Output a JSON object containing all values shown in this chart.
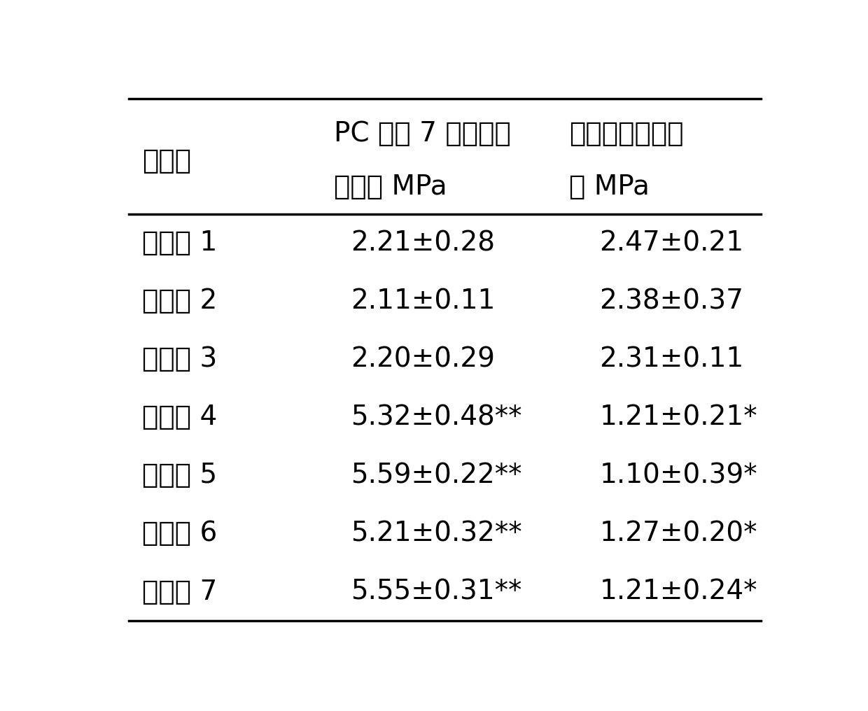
{
  "header_col0": "实验组",
  "header_col1_line1": "PC 浸泡 7 天后的粘",
  "header_col1_line2": "接强度 MPa",
  "header_col2_line1": "粘合强度的降低",
  "header_col2_line2": "値 MPa",
  "rows": [
    [
      "实施例 1",
      "2.21±0.28",
      "2.47±0.21"
    ],
    [
      "实施例 2",
      "2.11±0.11",
      "2.38±0.37"
    ],
    [
      "实施例 3",
      "2.20±0.29",
      "2.31±0.11"
    ],
    [
      "实施例 4",
      "5.32±0.48**",
      "1.21±0.21*"
    ],
    [
      "实施例 5",
      "5.59±0.22**",
      "1.10±0.39*"
    ],
    [
      "实施例 6",
      "5.21±0.32**",
      "1.27±0.20*"
    ],
    [
      "实施例 7",
      "5.55±0.31**",
      "1.21±0.24*"
    ]
  ],
  "background_color": "#ffffff",
  "text_color": "#000000",
  "font_size_header": 28,
  "font_size_body": 28,
  "line_color": "#000000",
  "line_width": 2.5
}
